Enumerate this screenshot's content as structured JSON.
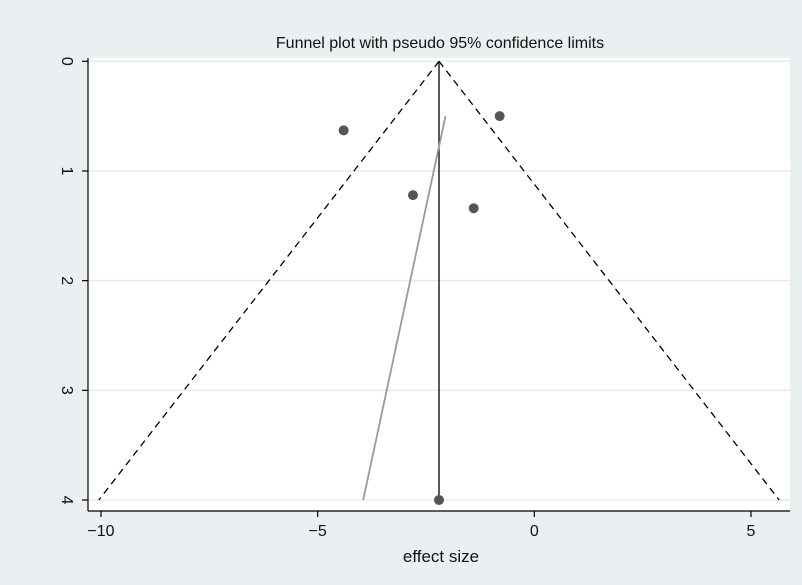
{
  "chart_data": {
    "type": "scatter",
    "title": "Funnel plot with pseudo 95% confidence limits",
    "xlabel": "effect size",
    "ylabel": "",
    "xlim": [
      -10.3,
      5.9
    ],
    "ylim": [
      4.1,
      -0.03
    ],
    "y_reversed": true,
    "grid": true,
    "x_ticks": [
      {
        "value": -10,
        "label": "−10"
      },
      {
        "value": -5,
        "label": "−5"
      },
      {
        "value": 0,
        "label": "0"
      },
      {
        "value": 5,
        "label": "5"
      }
    ],
    "y_ticks": [
      {
        "value": 0,
        "label": "0"
      },
      {
        "value": 1,
        "label": "1"
      },
      {
        "value": 2,
        "label": "2"
      },
      {
        "value": 3,
        "label": "3"
      },
      {
        "value": 4,
        "label": "4"
      }
    ],
    "points": [
      {
        "x": -0.8,
        "y": 0.5
      },
      {
        "x": -4.4,
        "y": 0.63
      },
      {
        "x": -2.8,
        "y": 1.22
      },
      {
        "x": -1.4,
        "y": 1.34
      },
      {
        "x": -2.2,
        "y": 4.0
      }
    ],
    "pooled_effect_line": {
      "x": -2.2,
      "y": [
        0,
        4.0
      ]
    },
    "confidence_limits": {
      "apex": {
        "x": -2.2,
        "y": 0
      },
      "left_base": {
        "x": -10.05,
        "y": 4.0
      },
      "right_base": {
        "x": 5.65,
        "y": 4.0
      }
    },
    "regression_line": {
      "from": {
        "x": -3.95,
        "y": 4.0
      },
      "to": {
        "x": -2.05,
        "y": 0.5
      }
    },
    "colors": {
      "background": "#eaeff2",
      "plot_area": "#ffffff",
      "grid": "#e6ebee",
      "points": "#555555",
      "regression": "#9a9a9a",
      "lines": "#000000"
    }
  }
}
